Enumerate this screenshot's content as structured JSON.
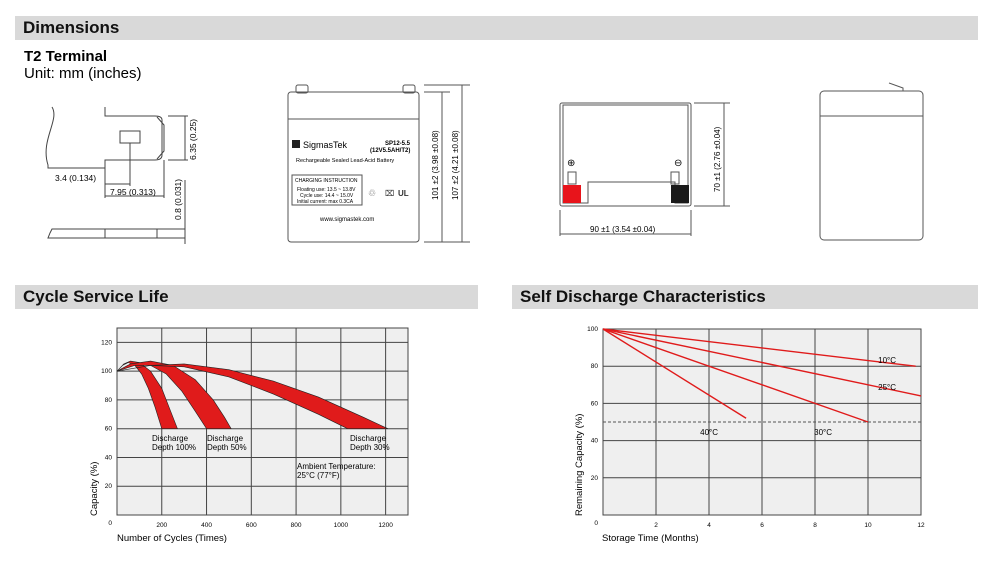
{
  "sections": {
    "dimensions": "Dimensions",
    "cycle": "Cycle Service Life",
    "discharge": "Self Discharge Characteristics"
  },
  "terminal": {
    "title": "T2 Terminal",
    "unit": "Unit: mm (inches)",
    "dim_height": "6.35 (0.25)",
    "dim_a": "3.4 (0.134)",
    "dim_b": "7.95 (0.313)",
    "dim_thick": "0.8 (0.031)"
  },
  "battery_front": {
    "brand": "SigmasTek",
    "model": "SP12-5.5",
    "model_sub": "(12V5.5AH/T2)",
    "subtitle": "Rechargeable Sealed Lead-Acid Battery",
    "charging_title": "CHARGING INSTRUCTION",
    "charging_lines": [
      "Floating use: 13.5 ~ 13.8V",
      "Cycle use: 14.4 ~ 15.0V",
      "Initial current: max 0.3CA"
    ],
    "website": "www.sigmastek.com",
    "dim_101": "101 ±2 (3.98 ±0.08)",
    "dim_107": "107 ±2 (4.21 ±0.08)"
  },
  "battery_top": {
    "dim_width": "90 ±1 (3.54 ±0.04)",
    "dim_depth": "70 ±1 (2.76 ±0.04)",
    "positive": "⊕",
    "negative": "⊖",
    "colors": {
      "positive": "#e8141b",
      "negative": "#1a1a1a"
    }
  },
  "chart_data": [
    {
      "type": "area",
      "xlabel": "Number of Cycles (Times)",
      "ylabel": "Capacity (%)",
      "xlim": [
        0,
        1300
      ],
      "ylim": [
        0,
        130
      ],
      "grid": true,
      "xticks": [
        0,
        200,
        400,
        600,
        800,
        1000,
        1200
      ],
      "yticks": [
        0,
        20,
        40,
        60,
        80,
        100,
        120
      ],
      "xtick_labels": [
        "200",
        "400",
        "600",
        "800",
        "1000",
        "1200"
      ],
      "ytick_labels": [
        "0",
        "20",
        "40",
        "60",
        "80",
        "100",
        "120"
      ],
      "color": "#e01b1b",
      "series": [
        {
          "label": [
            "Discharge",
            "Depth 100%"
          ],
          "outer": [
            [
              0,
              100
            ],
            [
              30,
              105
            ],
            [
              60,
              107
            ],
            [
              100,
              106
            ],
            [
              150,
              100
            ],
            [
              200,
              88
            ],
            [
              240,
              72
            ],
            [
              270,
              60
            ]
          ],
          "inner": [
            [
              200,
              60
            ],
            [
              170,
              75
            ],
            [
              140,
              88
            ],
            [
              110,
              98
            ],
            [
              80,
              104
            ],
            [
              50,
              106
            ],
            [
              25,
              104
            ],
            [
              0,
              100
            ]
          ]
        },
        {
          "label": [
            "Discharge",
            "Depth 50%"
          ],
          "outer": [
            [
              0,
              100
            ],
            [
              60,
              105
            ],
            [
              150,
              107
            ],
            [
              250,
              104
            ],
            [
              350,
              94
            ],
            [
              430,
              80
            ],
            [
              480,
              68
            ],
            [
              510,
              60
            ]
          ],
          "inner": [
            [
              400,
              60
            ],
            [
              350,
              72
            ],
            [
              290,
              86
            ],
            [
              220,
              98
            ],
            [
              150,
              104
            ],
            [
              80,
              104
            ],
            [
              0,
              100
            ]
          ]
        },
        {
          "label": [
            "Discharge",
            "Depth 30%"
          ],
          "outer": [
            [
              0,
              100
            ],
            [
              150,
              104
            ],
            [
              300,
              105
            ],
            [
              500,
              101
            ],
            [
              700,
              93
            ],
            [
              900,
              82
            ],
            [
              1100,
              68
            ],
            [
              1210,
              60
            ]
          ],
          "inner": [
            [
              1030,
              60
            ],
            [
              900,
              70
            ],
            [
              700,
              84
            ],
            [
              500,
              96
            ],
            [
              300,
              103
            ],
            [
              150,
              104
            ],
            [
              0,
              100
            ]
          ]
        }
      ],
      "annotation": [
        "Ambient Temperature:",
        "25°C (77°F)"
      ]
    },
    {
      "type": "line",
      "xlabel": "Storage Time (Months)",
      "ylabel": "Remaining Capacity (%)",
      "xlim": [
        0,
        12
      ],
      "ylim": [
        0,
        100
      ],
      "grid": true,
      "xticks": [
        0,
        2,
        4,
        6,
        8,
        10,
        12
      ],
      "yticks": [
        0,
        20,
        40,
        60,
        80,
        100
      ],
      "xtick_labels": [
        "2",
        "4",
        "6",
        "8",
        "10",
        "12"
      ],
      "ytick_labels": [
        "0",
        "20",
        "40",
        "60",
        "80",
        "100"
      ],
      "reference_line": 50,
      "color": "#e01b1b",
      "series": [
        {
          "name": "10°C",
          "points": [
            [
              0,
              100
            ],
            [
              11.8,
              80
            ]
          ]
        },
        {
          "name": "25°C",
          "points": [
            [
              0,
              100
            ],
            [
              12,
              64
            ]
          ]
        },
        {
          "name": "30°C",
          "points": [
            [
              0,
              100
            ],
            [
              10,
              50
            ]
          ]
        },
        {
          "name": "40°C",
          "points": [
            [
              0,
              100
            ],
            [
              5.4,
              52
            ]
          ]
        }
      ]
    }
  ]
}
